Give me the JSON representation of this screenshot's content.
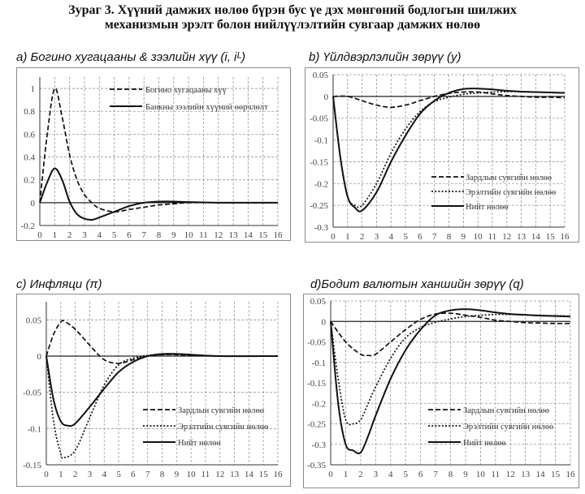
{
  "figure": {
    "title_line1": "Зураг 3. Хүүний дамжих нөлөө бүрэн бус үе дэх мөнгөний бодлогын шилжих",
    "title_line2": "механизмын эрэлт болон нийлүүлэлтийн сувгаар дамжих нөлөө"
  },
  "chart_data": [
    {
      "type": "line",
      "title": "a) Богино хугацааны & зээлийн хүү (i, iᴸ)",
      "xlabel": "",
      "ylabel": "",
      "xlim": [
        0,
        16
      ],
      "ylim": [
        -0.2,
        1.1
      ],
      "xticks": [
        0,
        1,
        2,
        3,
        4,
        5,
        6,
        7,
        8,
        9,
        10,
        11,
        12,
        13,
        14,
        15,
        16
      ],
      "yticks": [
        -0.2,
        0,
        0.2,
        0.4,
        0.6,
        0.8,
        1
      ],
      "ytick_labels": [
        "-0.2",
        "0",
        "0.2",
        "0.4",
        "0.6",
        "0.8",
        "1"
      ],
      "grid": true,
      "legend_position": "top-right",
      "series": [
        {
          "name": "Богино хугацааны хүү",
          "style": "dashed",
          "x": [
            0,
            0.5,
            1,
            1.5,
            2,
            2.5,
            3,
            3.5,
            4,
            5,
            6,
            7,
            8,
            9,
            10,
            12,
            14,
            16
          ],
          "y": [
            0,
            0.6,
            1.0,
            0.75,
            0.42,
            0.2,
            0.07,
            0.0,
            -0.05,
            -0.08,
            -0.06,
            -0.04,
            -0.02,
            -0.01,
            0,
            0,
            0,
            0
          ]
        },
        {
          "name": "Банкны зээлийн хүүний өөрчлөлт",
          "style": "solid",
          "x": [
            0,
            0.5,
            1,
            1.5,
            2,
            2.5,
            3,
            3.5,
            4,
            5,
            6,
            7,
            8,
            9,
            10,
            12,
            14,
            16
          ],
          "y": [
            0,
            0.18,
            0.3,
            0.2,
            0.01,
            -0.1,
            -0.14,
            -0.15,
            -0.13,
            -0.08,
            -0.03,
            0.0,
            0.01,
            0.01,
            0.005,
            0,
            0,
            0
          ]
        }
      ]
    },
    {
      "type": "line",
      "title": "b) Үйлдвэрлэлийн зөрүү (y)",
      "xlabel": "",
      "ylabel": "",
      "xlim": [
        0,
        16
      ],
      "ylim": [
        -0.3,
        0.05
      ],
      "xticks": [
        0,
        1,
        2,
        3,
        4,
        5,
        6,
        7,
        8,
        9,
        10,
        11,
        12,
        13,
        14,
        15,
        16
      ],
      "yticks": [
        -0.3,
        -0.25,
        -0.2,
        -0.15,
        -0.1,
        -0.05,
        0,
        0.05
      ],
      "ytick_labels": [
        "-0.3",
        "-0.25",
        "-0.2",
        "-0.15",
        "-0.1",
        "-0.05",
        "0",
        "0.05"
      ],
      "grid": true,
      "legend_position": "bottom-right",
      "series": [
        {
          "name": "Зардлын сувгийн нөлөө",
          "style": "dashed",
          "x": [
            0,
            1,
            2,
            3,
            4,
            5,
            6,
            7,
            8,
            9,
            10,
            11,
            12,
            13,
            14,
            15,
            16
          ],
          "y": [
            0,
            0,
            -0.01,
            -0.02,
            -0.025,
            -0.02,
            -0.01,
            0.0,
            0.007,
            0.01,
            0.01,
            0.006,
            0.002,
            0,
            -0.002,
            -0.002,
            -0.003
          ]
        },
        {
          "name": "Эрэлтийн сувгийн нөлөө",
          "style": "dotted",
          "x": [
            0,
            0.5,
            1,
            1.5,
            2,
            3,
            4,
            5,
            6,
            7,
            8,
            9,
            10,
            11,
            12,
            13,
            14,
            15,
            16
          ],
          "y": [
            0,
            -0.14,
            -0.23,
            -0.25,
            -0.25,
            -0.2,
            -0.13,
            -0.075,
            -0.035,
            -0.012,
            -0.002,
            0.005,
            0.008,
            0.01,
            0.011,
            0.011,
            0.01,
            0.009,
            0.008
          ]
        },
        {
          "name": "Нийт нөлөө",
          "style": "solid",
          "x": [
            0,
            0.5,
            1,
            1.5,
            2,
            3,
            4,
            5,
            6,
            7,
            8,
            9,
            10,
            11,
            12,
            13,
            14,
            15,
            16
          ],
          "y": [
            0,
            -0.14,
            -0.23,
            -0.255,
            -0.262,
            -0.22,
            -0.15,
            -0.09,
            -0.04,
            -0.01,
            0.008,
            0.017,
            0.018,
            0.016,
            0.013,
            0.011,
            0.01,
            0.009,
            0.008
          ]
        }
      ]
    },
    {
      "type": "line",
      "title": "c) Инфляци (π)",
      "xlabel": "",
      "ylabel": "",
      "xlim": [
        0,
        16
      ],
      "ylim": [
        -0.15,
        0.075
      ],
      "xticks": [
        0,
        1,
        2,
        3,
        4,
        5,
        6,
        7,
        8,
        9,
        10,
        11,
        12,
        13,
        14,
        15,
        16
      ],
      "yticks": [
        -0.15,
        -0.1,
        -0.05,
        0,
        0.05
      ],
      "ytick_labels": [
        "-0.15",
        "-0.1",
        "-0.05",
        "0",
        "0.05"
      ],
      "grid": true,
      "legend_position": "bottom-right",
      "series": [
        {
          "name": "Зардлын сувгийн нөлөө",
          "style": "dashed",
          "x": [
            0,
            0.5,
            1,
            1.25,
            2,
            3,
            4,
            5,
            6,
            7,
            8,
            9,
            10,
            12,
            16
          ],
          "y": [
            0,
            0.03,
            0.047,
            0.048,
            0.037,
            0.015,
            -0.005,
            -0.01,
            -0.005,
            0,
            0.002,
            0.002,
            0.001,
            0,
            0
          ]
        },
        {
          "name": "Эрэлтийн сувгийн нөлөө",
          "style": "dotted",
          "x": [
            0,
            0.5,
            1,
            1.25,
            2,
            3,
            4,
            5,
            6,
            7,
            8,
            9,
            10,
            12,
            16
          ],
          "y": [
            0,
            -0.09,
            -0.135,
            -0.14,
            -0.13,
            -0.085,
            -0.04,
            -0.012,
            -0.003,
            0.001,
            0.002,
            0.002,
            0.001,
            0,
            0
          ]
        },
        {
          "name": "Нийт нөлөө",
          "style": "solid",
          "x": [
            0,
            0.5,
            1,
            1.5,
            2,
            3,
            4,
            5,
            6,
            7,
            8,
            9,
            10,
            12,
            16
          ],
          "y": [
            0,
            -0.06,
            -0.09,
            -0.096,
            -0.093,
            -0.07,
            -0.045,
            -0.022,
            -0.008,
            0,
            0.003,
            0.003,
            0.002,
            0,
            0
          ]
        }
      ]
    },
    {
      "type": "line",
      "title": "d)Бодит валютын ханшийн зөрүү (q)",
      "xlabel": "",
      "ylabel": "",
      "xlim": [
        0,
        16
      ],
      "ylim": [
        -0.35,
        0.05
      ],
      "xticks": [
        0,
        1,
        2,
        3,
        4,
        5,
        6,
        7,
        8,
        9,
        10,
        11,
        12,
        13,
        14,
        15,
        16
      ],
      "yticks": [
        -0.35,
        -0.3,
        -0.25,
        -0.2,
        -0.15,
        -0.1,
        -0.05,
        0,
        0.05
      ],
      "ytick_labels": [
        "-0.35",
        "-0.3",
        "-0.25",
        "-0.2",
        "-0.15",
        "-0.1",
        "-0.05",
        "0",
        "0.05"
      ],
      "grid": true,
      "legend_position": "bottom-right",
      "series": [
        {
          "name": "Зардлын сувгийн нөлөө",
          "style": "dashed",
          "x": [
            0,
            1,
            2,
            2.5,
            3,
            4,
            5,
            6,
            7,
            8,
            9,
            10,
            11,
            12,
            13,
            14,
            15,
            16
          ],
          "y": [
            0,
            -0.05,
            -0.08,
            -0.083,
            -0.08,
            -0.05,
            -0.02,
            0.005,
            0.018,
            0.02,
            0.015,
            0.01,
            0.003,
            0,
            -0.003,
            -0.004,
            -0.005,
            -0.005
          ]
        },
        {
          "name": "Эрэлтийн сувгийн нөлөө",
          "style": "dotted",
          "x": [
            0,
            0.5,
            1,
            1.5,
            2,
            2.5,
            3,
            4,
            5,
            6,
            7,
            8,
            9,
            10,
            11,
            12,
            13,
            14,
            15,
            16
          ],
          "y": [
            0,
            -0.14,
            -0.24,
            -0.25,
            -0.24,
            -0.2,
            -0.16,
            -0.09,
            -0.04,
            -0.015,
            -0.002,
            0.006,
            0.012,
            0.015,
            0.017,
            0.017,
            0.016,
            0.015,
            0.014,
            0.013
          ]
        },
        {
          "name": "Нийт нөлөө",
          "style": "solid",
          "x": [
            0,
            0.5,
            1,
            1.5,
            2,
            2.5,
            3,
            4,
            5,
            6,
            7,
            8,
            9,
            10,
            11,
            12,
            13,
            14,
            15,
            16
          ],
          "y": [
            0,
            -0.2,
            -0.3,
            -0.315,
            -0.32,
            -0.28,
            -0.23,
            -0.14,
            -0.07,
            -0.02,
            0.015,
            0.027,
            0.03,
            0.027,
            0.022,
            0.018,
            0.016,
            0.014,
            0.013,
            0.012
          ]
        }
      ]
    }
  ]
}
